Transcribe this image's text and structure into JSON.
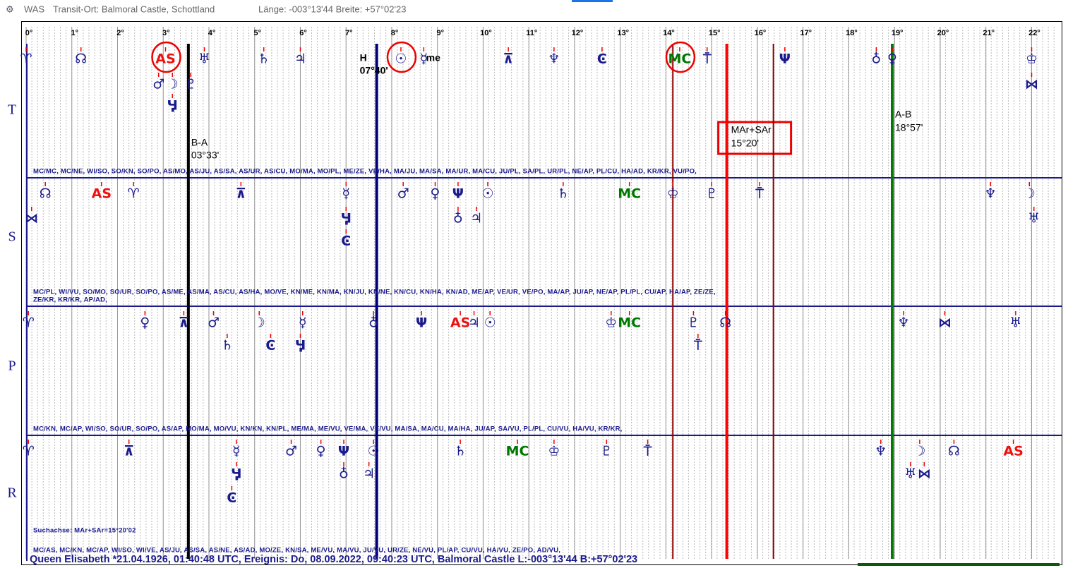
{
  "window": {
    "app": "WAS",
    "place": "Transit-Ort: Balmoral Castle, Schottland",
    "coords": "Länge: -003°13'44 Breite: +57°02'23"
  },
  "scale": {
    "ticks": [
      {
        "value": 0,
        "label": "0°"
      },
      {
        "value": 1,
        "label": "1°"
      },
      {
        "value": 2,
        "label": "2°"
      },
      {
        "value": 3,
        "label": "3°"
      },
      {
        "value": 4,
        "label": "4°"
      },
      {
        "value": 5,
        "label": "5°"
      },
      {
        "value": 6,
        "label": "6°"
      },
      {
        "value": 7,
        "label": "7°"
      },
      {
        "value": 8,
        "label": "8°"
      },
      {
        "value": 9,
        "label": "9°"
      },
      {
        "value": 10,
        "label": "10°"
      },
      {
        "value": 11,
        "label": "11°"
      },
      {
        "value": 12,
        "label": "12°"
      },
      {
        "value": 13,
        "label": "13°"
      },
      {
        "value": 14,
        "label": "14°"
      },
      {
        "value": 15,
        "label": "15°"
      },
      {
        "value": 16,
        "label": "16°"
      },
      {
        "value": 17,
        "label": "17°"
      },
      {
        "value": 18,
        "label": "18°"
      },
      {
        "value": 19,
        "label": "19°"
      },
      {
        "value": 20,
        "label": "20°"
      },
      {
        "value": 21,
        "label": "21°"
      },
      {
        "value": 22,
        "label": "22°"
      }
    ]
  },
  "axes": [
    {
      "deg": 3.55,
      "color": "#000000",
      "labels": [
        "B-A",
        "03°33'"
      ]
    },
    {
      "deg": 7.67,
      "color": "#00007a",
      "labels": [
        "H",
        "me",
        "07°40'"
      ]
    },
    {
      "deg": 14.15,
      "color": "#8b0000",
      "labels": []
    },
    {
      "deg": 15.33,
      "color": "#ff0000",
      "labels": [
        "MAr+SAr",
        "15°20'"
      ]
    },
    {
      "deg": 16.35,
      "color": "#8b0000",
      "labels": []
    },
    {
      "deg": 18.95,
      "color": "#007a00",
      "labels": [
        "A-B",
        "18°57'"
      ]
    }
  ],
  "rows": [
    {
      "label": "T",
      "glyphs": [
        {
          "s": "♈",
          "deg": 0,
          "level": 0
        },
        {
          "s": "☊",
          "deg": 1.2,
          "level": 0
        },
        {
          "s": "AS",
          "deg": 3.05,
          "level": 0,
          "color": "red",
          "circled": true
        },
        {
          "s": "♅",
          "deg": 3.9,
          "level": 0
        },
        {
          "s": "♄",
          "deg": 5.2,
          "level": 0
        },
        {
          "s": "♃",
          "deg": 6.0,
          "level": 0
        },
        {
          "s": "☉",
          "deg": 8.2,
          "level": 0,
          "circled": true
        },
        {
          "s": "☿",
          "deg": 8.7,
          "level": 0
        },
        {
          "s": "⊼",
          "deg": 10.55,
          "level": 0
        },
        {
          "s": "♆",
          "deg": 11.55,
          "level": 0
        },
        {
          "s": "Ͼ",
          "deg": 12.6,
          "level": 0
        },
        {
          "s": "MC",
          "deg": 14.3,
          "level": 0,
          "color": "green",
          "circled": true
        },
        {
          "s": "⍑",
          "deg": 14.9,
          "level": 0
        },
        {
          "s": "Ψ",
          "deg": 16.6,
          "level": 0
        },
        {
          "s": "♁",
          "deg": 18.6,
          "level": 0
        },
        {
          "s": "♀",
          "deg": 18.95,
          "level": 0
        },
        {
          "s": "♔",
          "deg": 22.0,
          "level": 0
        },
        {
          "s": "⋈",
          "deg": 22.0,
          "level": 1
        },
        {
          "s": "♂",
          "deg": 2.9,
          "level": 1
        },
        {
          "s": "☽",
          "deg": 3.2,
          "level": 1
        },
        {
          "s": "♇",
          "deg": 3.6,
          "level": 1
        },
        {
          "s": "Ӌ",
          "deg": 3.2,
          "level": 2
        }
      ],
      "midpoints": [
        "MC/MC, MC/NE, WI/SO, SO/KN, SO/PO, AS/MO, AS/JU, AS/SA, AS/UR, AS/CU, MO/MA, MO/PL, ME/ZE, VE/HA, MA/JU, MA/SA, MA/UR, MA/CU, JU/PL, SA/PL, UR/PL, NE/AP, PL/CU, HA/AD, KR/KR, VU/PO,"
      ]
    },
    {
      "label": "S",
      "glyphs": [
        {
          "s": "☊",
          "deg": 0.42,
          "level": 0
        },
        {
          "s": "⋈",
          "deg": 0.12,
          "level": 1
        },
        {
          "s": "AS",
          "deg": 1.65,
          "level": 0,
          "color": "red"
        },
        {
          "s": "♈",
          "deg": 2.35,
          "level": 0
        },
        {
          "s": "⊼",
          "deg": 4.7,
          "level": 0
        },
        {
          "s": "☿",
          "deg": 7.0,
          "level": 0
        },
        {
          "s": "Ӌ",
          "deg": 7.0,
          "level": 1
        },
        {
          "s": "Ͼ",
          "deg": 7.0,
          "level": 2
        },
        {
          "s": "♂",
          "deg": 8.25,
          "level": 0
        },
        {
          "s": "♀",
          "deg": 8.95,
          "level": 0
        },
        {
          "s": "Ψ",
          "deg": 9.45,
          "level": 0
        },
        {
          "s": "♁",
          "deg": 9.45,
          "level": 1
        },
        {
          "s": "♃",
          "deg": 9.85,
          "level": 1
        },
        {
          "s": "☉",
          "deg": 10.1,
          "level": 0
        },
        {
          "s": "♄",
          "deg": 11.75,
          "level": 0
        },
        {
          "s": "MC",
          "deg": 13.2,
          "level": 0,
          "color": "green"
        },
        {
          "s": "♔",
          "deg": 14.15,
          "level": 0
        },
        {
          "s": "♇",
          "deg": 15.0,
          "level": 0
        },
        {
          "s": "⍑",
          "deg": 16.05,
          "level": 0
        },
        {
          "s": "♆",
          "deg": 21.1,
          "level": 0
        },
        {
          "s": "☽",
          "deg": 21.95,
          "level": 0
        },
        {
          "s": "♅",
          "deg": 22.05,
          "level": 1
        }
      ],
      "midpoints": [
        "MC/PL, WI/VU, SO/MO, SO/UR, SO/PO, AS/ME, AS/MA, AS/CU, AS/HA, MO/VE, KN/ME, KN/MA, KN/JU, KN/NE, KN/CU, KN/HA, KN/AD, ME/AP, VE/UR, VE/PO, MA/AP, JU/AP, NE/AP, PL/PL, CU/AP, HA/AP, ZE/ZE,",
        "ZE/KR, KR/KR, AP/AD,"
      ]
    },
    {
      "label": "P",
      "glyphs": [
        {
          "s": "♈",
          "deg": 0.05,
          "level": 0
        },
        {
          "s": "♀",
          "deg": 2.6,
          "level": 0
        },
        {
          "s": "⊼",
          "deg": 3.45,
          "level": 0
        },
        {
          "s": "♂",
          "deg": 4.1,
          "level": 0
        },
        {
          "s": "☽",
          "deg": 5.1,
          "level": 0
        },
        {
          "s": "☿",
          "deg": 6.05,
          "level": 0
        },
        {
          "s": "♁",
          "deg": 7.6,
          "level": 0
        },
        {
          "s": "Ψ",
          "deg": 8.65,
          "level": 0
        },
        {
          "s": "AS",
          "deg": 9.5,
          "level": 0,
          "color": "red"
        },
        {
          "s": "♃",
          "deg": 9.8,
          "level": 0
        },
        {
          "s": "☉",
          "deg": 10.15,
          "level": 0
        },
        {
          "s": "♔",
          "deg": 12.8,
          "level": 0
        },
        {
          "s": "MC",
          "deg": 13.2,
          "level": 0,
          "color": "green"
        },
        {
          "s": "♇",
          "deg": 14.6,
          "level": 0
        },
        {
          "s": "☊",
          "deg": 15.3,
          "level": 0
        },
        {
          "s": "♆",
          "deg": 19.2,
          "level": 0
        },
        {
          "s": "⋈",
          "deg": 20.1,
          "level": 0
        },
        {
          "s": "♅",
          "deg": 21.65,
          "level": 0
        },
        {
          "s": "♄",
          "deg": 4.4,
          "level": 1
        },
        {
          "s": "Ͼ",
          "deg": 5.35,
          "level": 1
        },
        {
          "s": "Ӌ",
          "deg": 6.0,
          "level": 1
        },
        {
          "s": "⍑",
          "deg": 14.7,
          "level": 1
        }
      ],
      "midpoints": [
        "MC/KN, MC/AP, WI/SO, SO/UR, SO/PO, AS/AP, MO/MA, MO/VU, KN/KN, KN/PL, ME/MA, ME/VU, VE/MA, VE/VU, MA/SA, MA/CU, MA/HA, JU/AP, SA/VU, PL/PL, CU/VU, HA/VU, KR/KR,"
      ]
    },
    {
      "label": "R",
      "glyphs": [
        {
          "s": "♈",
          "deg": 0.05,
          "level": 0
        },
        {
          "s": "⊼",
          "deg": 2.25,
          "level": 0
        },
        {
          "s": "☿",
          "deg": 4.6,
          "level": 0
        },
        {
          "s": "♂",
          "deg": 5.8,
          "level": 0
        },
        {
          "s": "♀",
          "deg": 6.45,
          "level": 0
        },
        {
          "s": "Ψ",
          "deg": 6.95,
          "level": 0
        },
        {
          "s": "☉",
          "deg": 7.6,
          "level": 0
        },
        {
          "s": "♄",
          "deg": 9.5,
          "level": 0
        },
        {
          "s": "MC",
          "deg": 10.75,
          "level": 0,
          "color": "green"
        },
        {
          "s": "♔",
          "deg": 11.55,
          "level": 0
        },
        {
          "s": "♇",
          "deg": 12.7,
          "level": 0
        },
        {
          "s": "⍑",
          "deg": 13.6,
          "level": 0
        },
        {
          "s": "♆",
          "deg": 18.7,
          "level": 0
        },
        {
          "s": "☽",
          "deg": 19.55,
          "level": 0
        },
        {
          "s": "☊",
          "deg": 20.3,
          "level": 0
        },
        {
          "s": "AS",
          "deg": 21.6,
          "level": 0,
          "color": "red"
        },
        {
          "s": "Ӌ",
          "deg": 4.6,
          "level": 1
        },
        {
          "s": "♁",
          "deg": 6.95,
          "level": 1
        },
        {
          "s": "♃",
          "deg": 7.5,
          "level": 1
        },
        {
          "s": "♅",
          "deg": 19.35,
          "level": 1
        },
        {
          "s": "⋈",
          "deg": 19.65,
          "level": 1
        },
        {
          "s": "Ͼ",
          "deg": 4.5,
          "level": 2
        }
      ],
      "midpoints": [
        "MC/AS, MC/KN, MC/AP, WI/SO, WI/VE, AS/JU, AS/SA, AS/NE, AS/AD, MO/ZE, KN/SA, ME/VU, MA/VU, JU/VU, UR/ZE, NE/VU, PL/AP, CU/VU, HA/VU, ZE/PO, AD/VU,"
      ]
    }
  ],
  "search_axis": "Suchachse: MAr+SAr=15°20'02",
  "footer": "Queen Elisabeth   *21.04.1926, 01:40:48 UTC, Ereignis: Do, 08.09.2022, 09:40:23 UTC, Balmoral Castle L:-003°13'44 B:+57°02'23"
}
